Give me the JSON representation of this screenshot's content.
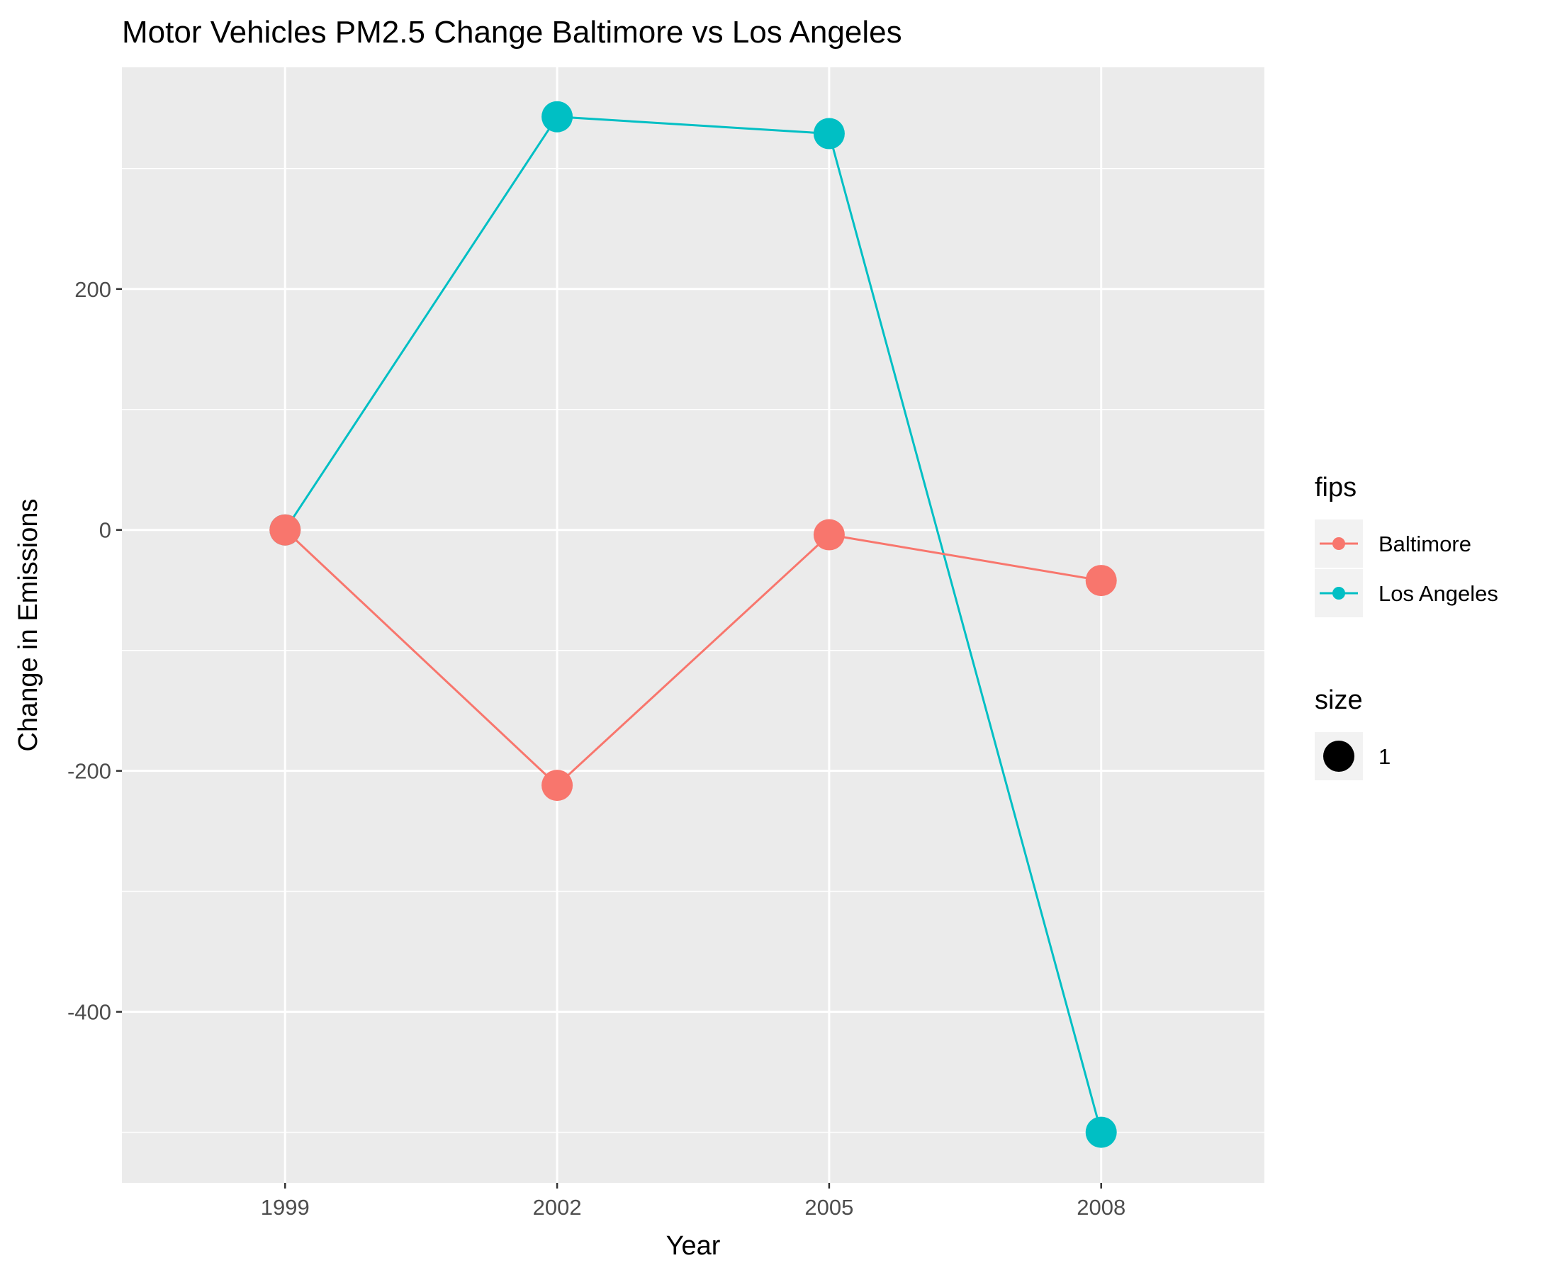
{
  "chart_data": {
    "type": "line",
    "title": "Motor Vehicles PM2.5 Change Baltimore vs Los Angeles",
    "xlabel": "Year",
    "ylabel": "Change in Emissions",
    "x": [
      1999,
      2002,
      2005,
      2008
    ],
    "x_tick_labels": [
      "1999",
      "2002",
      "2005",
      "2008"
    ],
    "y_ticks": [
      -400,
      -200,
      0,
      200
    ],
    "y_tick_labels": [
      "-400",
      "-200",
      "0",
      "200"
    ],
    "xlim": [
      1997.2,
      2009.8
    ],
    "ylim": [
      -542,
      384
    ],
    "grid": true,
    "legend_placement": "right",
    "series": [
      {
        "name": "Baltimore",
        "color": "#F8766D",
        "values": [
          0,
          -212,
          -4,
          -42
        ]
      },
      {
        "name": "Los Angeles",
        "color": "#00BFC4",
        "values": [
          0,
          343,
          329,
          -500
        ]
      }
    ],
    "legend": {
      "color_title": "fips",
      "size_title": "size",
      "size_entries": [
        "1"
      ]
    }
  }
}
